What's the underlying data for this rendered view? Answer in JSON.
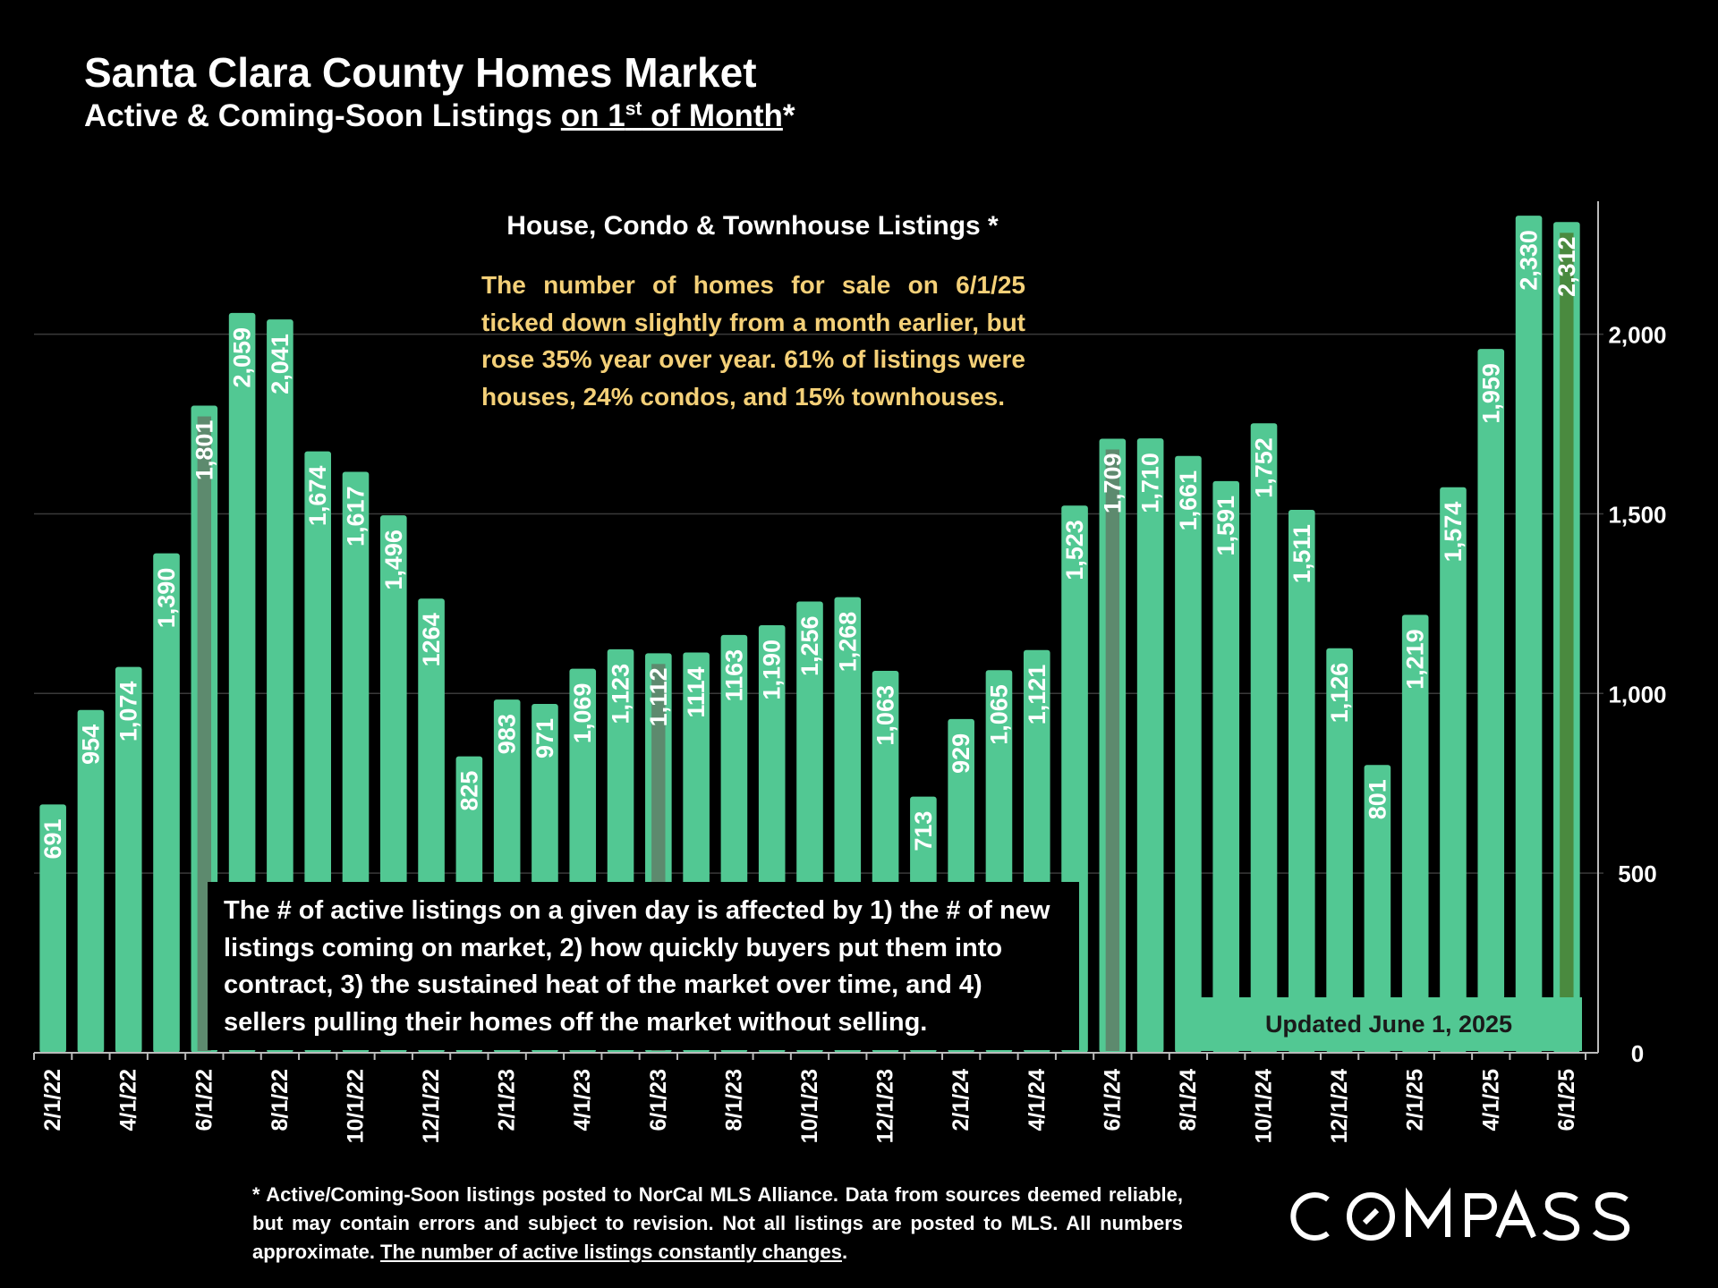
{
  "title": "Santa Clara County Homes Market",
  "subtitle": {
    "prefix": "Active & Coming-Soon Listings ",
    "underlined_pre": "on 1",
    "sup": "st",
    "underlined_post": " of Month",
    "suffix": "*"
  },
  "legend_title": "House, Condo & Townhouse Listings *",
  "callout": "The number of homes for sale on 6/1/25 ticked down slightly from a month earlier, but rose 35% year over year. 61% of listings were houses, 24% condos, and 15% townhouses.",
  "factors_note": "The # of active listings on a given day is affected by 1) the # of new listings coming on market, 2) how quickly buyers put them into contract, 3) the sustained heat of the market over time, and 4) sellers pulling their homes off the market without selling.",
  "updated_label": "Updated June 1, 2025",
  "footnote": {
    "text": "* Active/Coming-Soon listings posted to NorCal MLS Alliance.  Data from sources deemed reliable, but may contain errors and subject to revision.  Not all listings are posted to MLS. All numbers approximate. ",
    "underlined": "The number of active listings constantly changes",
    "end": "."
  },
  "logo_text": "COMPASS",
  "colors": {
    "bar": "#52c893",
    "bar_highlight": "#5d8a6e",
    "bar_latest": "#4a8a3f",
    "label": "#ffffff",
    "callout": "#f4d078",
    "grid": "#3a3a3a"
  },
  "chart_data": {
    "type": "bar",
    "title": "House, Condo & Townhouse Listings *",
    "categories": [
      "2/1/22",
      "3/1/22",
      "4/1/22",
      "5/1/22",
      "6/1/22",
      "7/1/22",
      "8/1/22",
      "9/1/22",
      "10/1/22",
      "11/1/22",
      "12/1/22",
      "1/1/23",
      "2/1/23",
      "3/1/23",
      "4/1/23",
      "5/1/23",
      "6/1/23",
      "7/1/23",
      "8/1/23",
      "9/1/23",
      "10/1/23",
      "11/1/23",
      "12/1/23",
      "1/1/24",
      "2/1/24",
      "3/1/24",
      "4/1/24",
      "5/1/24",
      "6/1/24",
      "7/1/24",
      "8/1/24",
      "9/1/24",
      "10/1/24",
      "11/1/24",
      "12/1/24",
      "1/1/25",
      "2/1/25",
      "3/1/25",
      "4/1/25",
      "5/1/25",
      "6/1/25"
    ],
    "values": [
      691,
      954,
      1074,
      1390,
      1801,
      2059,
      2041,
      1674,
      1617,
      1496,
      1264,
      825,
      983,
      971,
      1069,
      1123,
      1112,
      1114,
      1163,
      1190,
      1256,
      1268,
      1063,
      713,
      929,
      1065,
      1121,
      1523,
      1709,
      1710,
      1661,
      1591,
      1752,
      1511,
      1126,
      801,
      1219,
      1574,
      1959,
      2330,
      2312
    ],
    "value_labels": [
      "691",
      "954",
      "1,074",
      "1,390",
      "1,801",
      "2,059",
      "2,041",
      "1,674",
      "1,617",
      "1,496",
      "1264",
      "825",
      "983",
      "971",
      "1,069",
      "1,123",
      "1,112",
      "1114",
      "1163",
      "1,190",
      "1,256",
      "1,268",
      "1,063",
      "713",
      "929",
      "1,065",
      "1,121",
      "1,523",
      "1,709",
      "1,710",
      "1,661",
      "1,591",
      "1,752",
      "1,511",
      "1,126",
      "801",
      "1,219",
      "1,574",
      "1,959",
      "2,330",
      "2,312"
    ],
    "x_tick_labels": [
      "2/1/22",
      "4/1/22",
      "6/1/22",
      "8/1/22",
      "10/1/22",
      "12/1/22",
      "2/1/23",
      "4/1/23",
      "6/1/23",
      "8/1/23",
      "10/1/23",
      "12/1/23",
      "2/1/24",
      "4/1/24",
      "6/1/24",
      "8/1/24",
      "10/1/24",
      "12/1/24",
      "2/1/25",
      "4/1/25",
      "6/1/25"
    ],
    "highlighted": [
      "6/1/22",
      "6/1/23",
      "6/1/24"
    ],
    "latest": "6/1/25",
    "y_ticks": [
      0,
      500,
      1000,
      1500,
      2000
    ],
    "y_tick_labels": [
      "0",
      "500",
      "1,000",
      "1,500",
      "2,000"
    ],
    "ylim": [
      0,
      2370
    ],
    "y_axis_side": "right",
    "grid": true
  }
}
